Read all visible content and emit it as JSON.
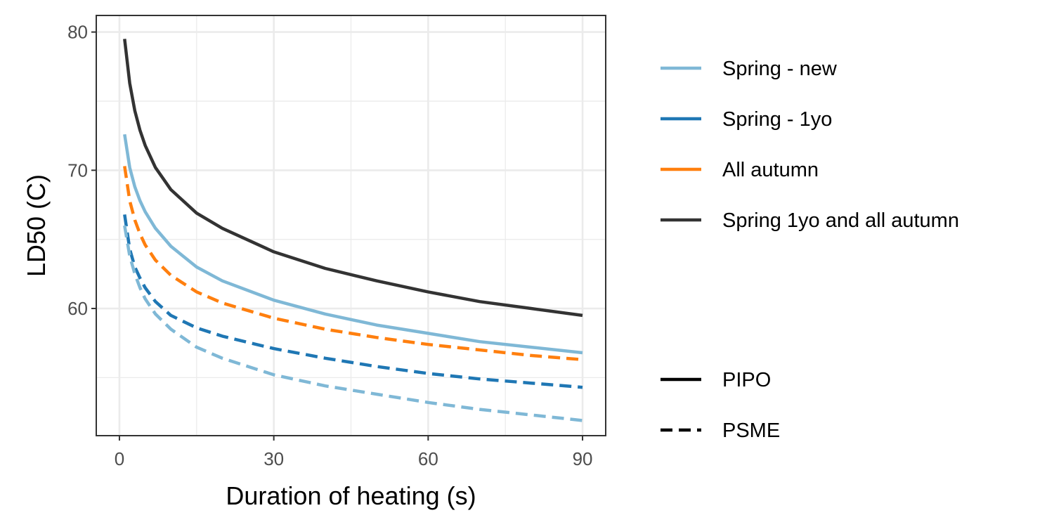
{
  "chart_data": {
    "type": "line",
    "xlabel": "Duration of heating (s)",
    "ylabel": "LD50 (C)",
    "xlim": [
      -4.5,
      94.5
    ],
    "ylim": [
      50.8,
      81.2
    ],
    "x_ticks": [
      0,
      30,
      60,
      90
    ],
    "y_ticks": [
      60,
      70,
      80
    ],
    "grid": true,
    "legend_position": "right",
    "color_legend": [
      "Spring - new",
      "Spring - 1yo",
      "All autumn",
      "Spring 1yo and all autumn"
    ],
    "linetype_legend": [
      "PIPO",
      "PSME"
    ],
    "colors": {
      "Spring - new": "#7fb8d6",
      "Spring - 1yo": "#1f77b4",
      "All autumn": "#ff7f0e",
      "Spring 1yo and all autumn": "#333333"
    },
    "series": [
      {
        "name": "Spring 1yo and all autumn",
        "species": "PIPO",
        "linetype": "solid",
        "x": [
          1,
          2,
          3,
          4,
          5,
          7,
          10,
          15,
          20,
          30,
          40,
          50,
          60,
          70,
          80,
          90
        ],
        "y": [
          79.5,
          76.3,
          74.3,
          72.9,
          71.8,
          70.2,
          68.6,
          66.9,
          65.8,
          64.1,
          62.9,
          62.0,
          61.2,
          60.5,
          60.0,
          59.5
        ]
      },
      {
        "name": "Spring - new",
        "species": "PIPO",
        "linetype": "solid",
        "x": [
          1,
          2,
          3,
          4,
          5,
          7,
          10,
          15,
          20,
          30,
          40,
          50,
          60,
          70,
          80,
          90
        ],
        "y": [
          72.6,
          70.2,
          68.8,
          67.8,
          67.0,
          65.8,
          64.5,
          63.0,
          62.0,
          60.6,
          59.6,
          58.8,
          58.2,
          57.6,
          57.2,
          56.8
        ]
      },
      {
        "name": "All autumn",
        "species": "PSME",
        "linetype": "dashed",
        "x": [
          1,
          2,
          3,
          4,
          5,
          7,
          10,
          15,
          20,
          30,
          40,
          50,
          60,
          70,
          80,
          90
        ],
        "y": [
          70.3,
          67.8,
          66.4,
          65.4,
          64.6,
          63.5,
          62.4,
          61.2,
          60.4,
          59.3,
          58.5,
          57.9,
          57.4,
          57.0,
          56.6,
          56.3
        ]
      },
      {
        "name": "Spring - 1yo",
        "species": "PSME",
        "linetype": "dashed",
        "x": [
          1,
          2,
          3,
          4,
          5,
          7,
          10,
          15,
          20,
          30,
          40,
          50,
          60,
          70,
          80,
          90
        ],
        "y": [
          66.8,
          64.3,
          63.0,
          62.2,
          61.5,
          60.5,
          59.5,
          58.6,
          58.0,
          57.1,
          56.4,
          55.8,
          55.3,
          54.9,
          54.6,
          54.3
        ]
      },
      {
        "name": "Spring - new",
        "species": "PSME",
        "linetype": "dashed",
        "x": [
          1,
          2,
          3,
          4,
          5,
          7,
          10,
          15,
          20,
          30,
          40,
          50,
          60,
          70,
          80,
          90
        ],
        "y": [
          66.0,
          63.8,
          62.5,
          61.5,
          60.7,
          59.6,
          58.5,
          57.2,
          56.4,
          55.2,
          54.4,
          53.8,
          53.2,
          52.7,
          52.3,
          51.9
        ]
      }
    ]
  }
}
